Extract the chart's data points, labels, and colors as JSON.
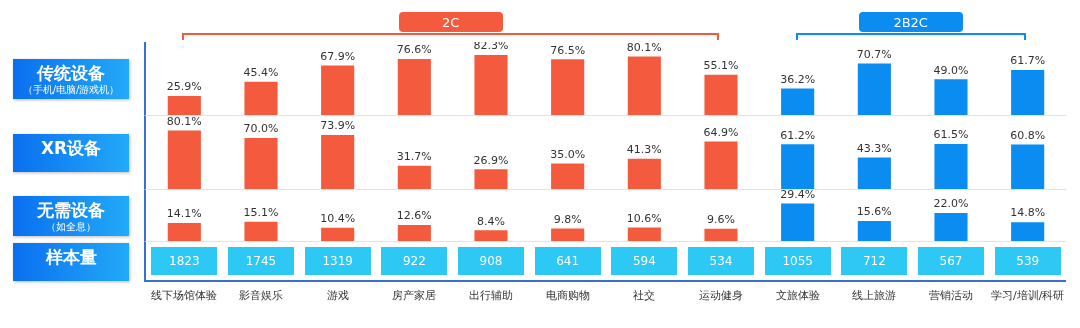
{
  "chart_data": [
    {
      "type": "bar",
      "title": "传统设备",
      "subtitle": "（手机/电脑/游戏机）",
      "categories": [
        "线下场馆体验",
        "影音娱乐",
        "游戏",
        "房产家居",
        "出行辅助",
        "电商购物",
        "社交",
        "运动健身",
        "文旅体验",
        "线上旅游",
        "营销活动",
        "学习/培训/科研"
      ],
      "values": [
        25.9,
        45.4,
        67.9,
        76.6,
        82.3,
        76.5,
        80.1,
        55.1,
        36.2,
        70.7,
        49.0,
        61.7
      ],
      "value_labels": [
        "25.9%",
        "45.4%",
        "67.9%",
        "76.6%",
        "82.3%",
        "76.5%",
        "80.1%",
        "55.1%",
        "36.2%",
        "70.7%",
        "49.0%",
        "61.7%"
      ],
      "colors": [
        "#f45a3e",
        "#f45a3e",
        "#f45a3e",
        "#f45a3e",
        "#f45a3e",
        "#f45a3e",
        "#f45a3e",
        "#f45a3e",
        "#0a8cf0",
        "#0a8cf0",
        "#0a8cf0",
        "#0a8cf0"
      ],
      "annotations": [
        "2C",
        "2B2C"
      ],
      "tick_labels": false
    },
    {
      "type": "bar",
      "title": "XR设备",
      "categories": [
        "线下场馆体验",
        "影音娱乐",
        "游戏",
        "房产家居",
        "出行辅助",
        "电商购物",
        "社交",
        "运动健身",
        "文旅体验",
        "线上旅游",
        "营销活动",
        "学习/培训/科研"
      ],
      "values": [
        80.1,
        70.0,
        73.9,
        31.7,
        26.9,
        35.0,
        41.3,
        64.9,
        61.2,
        43.3,
        61.5,
        60.8
      ],
      "value_labels": [
        "80.1%",
        "70.0%",
        "73.9%",
        "31.7%",
        "26.9%",
        "35.0%",
        "41.3%",
        "64.9%",
        "61.2%",
        "43.3%",
        "61.5%",
        "60.8%"
      ],
      "colors": [
        "#f45a3e",
        "#f45a3e",
        "#f45a3e",
        "#f45a3e",
        "#f45a3e",
        "#f45a3e",
        "#f45a3e",
        "#f45a3e",
        "#0a8cf0",
        "#0a8cf0",
        "#0a8cf0",
        "#0a8cf0"
      ],
      "tick_labels": false
    },
    {
      "type": "bar",
      "title": "无需设备",
      "subtitle": "（如全息）",
      "categories": [
        "线下场馆体验",
        "影音娱乐",
        "游戏",
        "房产家居",
        "出行辅助",
        "电商购物",
        "社交",
        "运动健身",
        "文旅体验",
        "线上旅游",
        "营销活动",
        "学习/培训/科研"
      ],
      "values": [
        14.1,
        15.1,
        10.4,
        12.6,
        8.4,
        9.8,
        10.6,
        9.6,
        29.4,
        15.6,
        22.0,
        14.8
      ],
      "value_labels": [
        "14.1%",
        "15.1%",
        "10.4%",
        "12.6%",
        "8.4%",
        "9.8%",
        "10.6%",
        "9.6%",
        "29.4%",
        "15.6%",
        "22.0%",
        "14.8%"
      ],
      "colors": [
        "#f45a3e",
        "#f45a3e",
        "#f45a3e",
        "#f45a3e",
        "#f45a3e",
        "#f45a3e",
        "#f45a3e",
        "#f45a3e",
        "#0a8cf0",
        "#0a8cf0",
        "#0a8cf0",
        "#0a8cf0"
      ],
      "tick_labels": false
    },
    {
      "type": "other",
      "title": "样本量",
      "categories": [
        "线下场馆体验",
        "影音娱乐",
        "游戏",
        "房产家居",
        "出行辅助",
        "电商购物",
        "社交",
        "运动健身",
        "文旅体验",
        "线上旅游",
        "营销活动",
        "学习/培训/科研"
      ],
      "values": [
        1823,
        1745,
        1319,
        922,
        908,
        641,
        594,
        534,
        1055,
        712,
        567,
        539
      ],
      "color": "#2ec8f4",
      "data_labels": true
    }
  ]
}
